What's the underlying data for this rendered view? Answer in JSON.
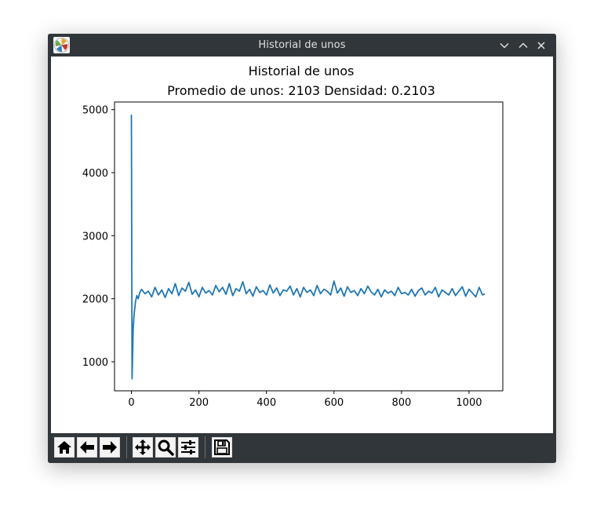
{
  "window": {
    "title": "Historial de unos",
    "app_icon": "matplotlib-logo-icon",
    "controls": [
      "minimize-icon",
      "maximize-icon",
      "close-icon"
    ]
  },
  "toolbar": {
    "buttons": [
      {
        "name": "home-button",
        "icon": "home-icon"
      },
      {
        "name": "back-button",
        "icon": "arrow-left-icon"
      },
      {
        "name": "forward-button",
        "icon": "arrow-right-icon"
      },
      {
        "name": "pan-button",
        "icon": "move-icon"
      },
      {
        "name": "zoom-button",
        "icon": "magnifier-icon"
      },
      {
        "name": "configure-subplots-button",
        "icon": "sliders-icon"
      },
      {
        "name": "save-button",
        "icon": "floppy-disk-icon"
      }
    ]
  },
  "chart_data": {
    "type": "line",
    "title": "Historial de unos",
    "subtitle": "Promedio de unos: 2103 Densidad: 0.2103",
    "xlabel": "",
    "ylabel": "",
    "xlim": [
      -50,
      1100
    ],
    "ylim": [
      540,
      5120
    ],
    "xticks": [
      0,
      200,
      400,
      600,
      800,
      1000
    ],
    "yticks": [
      1000,
      2000,
      3000,
      4000,
      5000
    ],
    "grid": false,
    "legend": "none",
    "line_color": "#1f77b4",
    "series": [
      {
        "x": [
          0,
          2,
          5,
          8,
          12,
          16,
          20,
          25,
          30,
          40,
          50,
          60,
          70,
          80,
          90,
          100,
          110,
          120,
          130,
          140,
          150,
          160,
          170,
          180,
          190,
          200,
          210,
          220,
          230,
          240,
          250,
          260,
          270,
          280,
          290,
          300,
          310,
          320,
          330,
          340,
          350,
          360,
          370,
          380,
          390,
          400,
          410,
          420,
          430,
          440,
          450,
          460,
          470,
          480,
          490,
          500,
          510,
          520,
          530,
          540,
          550,
          560,
          570,
          580,
          590,
          600,
          610,
          620,
          630,
          640,
          650,
          660,
          670,
          680,
          690,
          700,
          710,
          720,
          730,
          740,
          750,
          760,
          770,
          780,
          790,
          800,
          810,
          820,
          830,
          840,
          850,
          860,
          870,
          880,
          890,
          900,
          910,
          920,
          930,
          940,
          950,
          960,
          970,
          980,
          990,
          1000,
          1010,
          1020,
          1030,
          1040,
          1047
        ],
        "values": [
          4920,
          730,
          1500,
          1750,
          1950,
          2050,
          2000,
          2100,
          2150,
          2080,
          2120,
          2030,
          2180,
          2060,
          2140,
          2020,
          2160,
          2080,
          2240,
          2050,
          2170,
          2120,
          2260,
          2070,
          2140,
          2030,
          2180,
          2090,
          2130,
          2060,
          2210,
          2110,
          2180,
          2070,
          2240,
          2050,
          2160,
          2120,
          2270,
          2080,
          2150,
          2040,
          2190,
          2100,
          2130,
          2060,
          2220,
          2090,
          2170,
          2050,
          2140,
          2120,
          2200,
          2060,
          2160,
          2030,
          2180,
          2100,
          2140,
          2050,
          2210,
          2080,
          2150,
          2120,
          2060,
          2280,
          2090,
          2170,
          2040,
          2190,
          2100,
          2130,
          2050,
          2160,
          2080,
          2200,
          2110,
          2060,
          2150,
          2030,
          2140,
          2090,
          2120,
          2050,
          2180,
          2080,
          2100,
          2060,
          2150,
          2040,
          2130,
          2170,
          2060,
          2120,
          2090,
          2180,
          2030,
          2140,
          2100,
          2060,
          2160,
          2050,
          2120,
          2190,
          2040,
          2150,
          2090,
          2030,
          2180,
          2060,
          2080
        ]
      }
    ]
  }
}
